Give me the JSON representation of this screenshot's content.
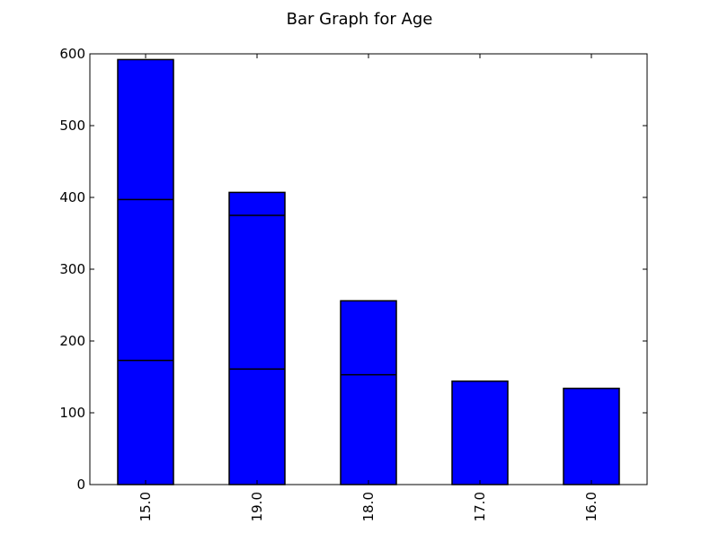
{
  "chart_data": {
    "type": "bar",
    "title": "Bar Graph for Age",
    "xlabel": "",
    "ylabel": "",
    "categories": [
      "15.0",
      "19.0",
      "18.0",
      "17.0",
      "16.0"
    ],
    "values": [
      592,
      407,
      256,
      144,
      134
    ],
    "segment_lines": [
      [
        173,
        397
      ],
      [
        161,
        375
      ],
      [
        153
      ],
      [],
      []
    ],
    "ylim": [
      0,
      600
    ],
    "yticks": [
      0,
      100,
      200,
      300,
      400,
      500,
      600
    ],
    "grid": false,
    "bar_color": "#0000ff",
    "edge_color": "#000000"
  }
}
